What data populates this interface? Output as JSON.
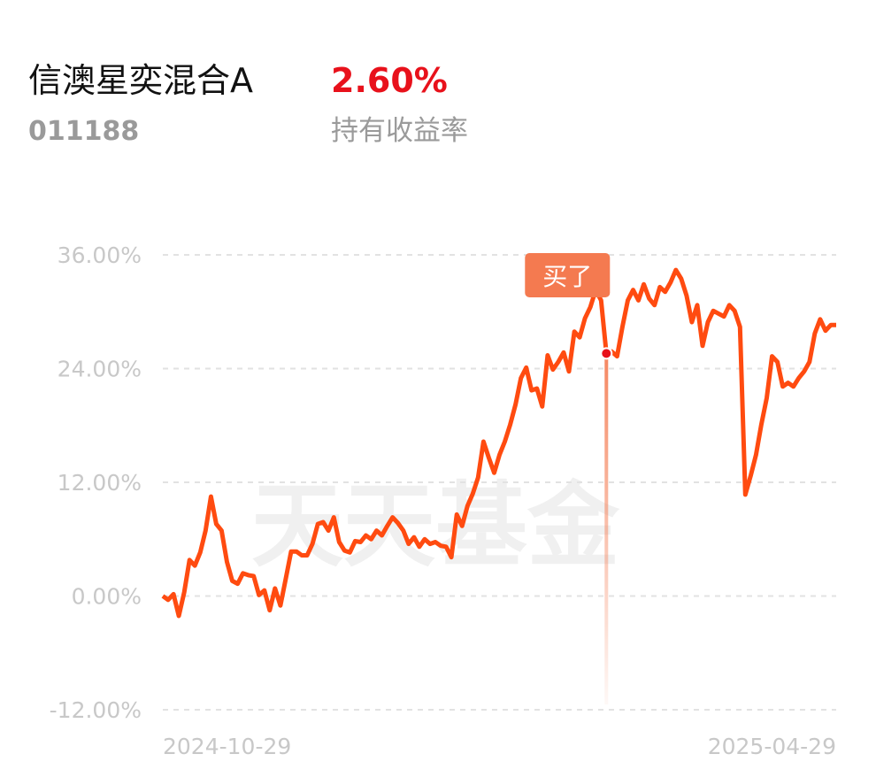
{
  "fund": {
    "name": "信澳星奕混合A",
    "return": "2.60%",
    "code": "011188",
    "return_label": "持有收益率"
  },
  "watermark": "天天基金",
  "chart_data": {
    "type": "line",
    "categories": [
      "2024-10-29",
      null,
      null,
      null,
      null,
      null,
      null,
      null,
      null,
      null,
      null,
      null,
      null,
      null,
      null,
      null,
      null,
      null,
      null,
      null,
      null,
      null,
      null,
      null,
      null,
      null,
      null,
      null,
      null,
      null,
      null,
      null,
      null,
      null,
      null,
      null,
      null,
      null,
      null,
      null,
      null,
      null,
      null,
      null,
      null,
      null,
      null,
      null,
      null,
      null,
      null,
      null,
      null,
      null,
      null,
      null,
      null,
      null,
      null,
      null,
      null,
      null,
      null,
      null,
      null,
      null,
      null,
      null,
      null,
      null,
      null,
      null,
      null,
      null,
      null,
      null,
      null,
      null,
      null,
      null,
      null,
      null,
      null,
      null,
      null,
      null,
      null,
      null,
      null,
      null,
      null,
      null,
      null,
      null,
      null,
      null,
      null,
      null,
      null,
      null,
      null,
      null,
      null,
      null,
      null,
      null,
      null,
      null,
      null,
      null,
      null,
      null,
      null,
      null,
      null,
      null,
      null,
      null,
      null,
      null,
      null,
      null,
      null,
      null,
      null,
      null,
      "2025-04-29"
    ],
    "series": [
      {
        "color": "#ff4b10",
        "values": [
          0,
          -0.4,
          0.2,
          -2.1,
          0.4,
          3.8,
          3.2,
          4.6,
          6.9,
          10.5,
          7.6,
          6.9,
          3.6,
          1.6,
          1.3,
          2.4,
          2.2,
          2.1,
          0.1,
          0.6,
          -1.5,
          0.8,
          -1.0,
          1.8,
          4.7,
          4.7,
          4.3,
          4.3,
          5.5,
          7.6,
          7.8,
          6.9,
          8.3,
          5.7,
          4.8,
          4.6,
          5.8,
          5.7,
          6.4,
          6.0,
          6.9,
          6.4,
          7.4,
          8.3,
          7.7,
          6.9,
          5.5,
          6.2,
          5.2,
          6.0,
          5.5,
          5.7,
          5.3,
          5.2,
          4.1,
          8.6,
          7.4,
          9.5,
          10.8,
          12.5,
          16.3,
          14.6,
          13.0,
          14.9,
          16.3,
          18.1,
          20.2,
          23.0,
          24.1,
          21.7,
          21.9,
          20.0,
          25.4,
          23.9,
          24.7,
          25.7,
          23.7,
          27.9,
          27.3,
          29.3,
          30.5,
          32.3,
          31.2,
          25.6,
          25.8,
          25.3,
          28.4,
          31.2,
          32.3,
          31.2,
          32.9,
          31.4,
          30.7,
          32.6,
          32.1,
          33.1,
          34.4,
          33.5,
          31.7,
          28.9,
          30.7,
          26.4,
          28.9,
          30.1,
          29.8,
          29.5,
          30.7,
          30.1,
          28.4,
          10.7,
          12.7,
          14.9,
          18.1,
          20.9,
          25.3,
          24.7,
          22.1,
          22.5,
          22.1,
          23.0,
          23.7,
          24.7,
          27.7,
          29.2,
          28.0,
          28.6,
          28.6
        ]
      }
    ],
    "buy_marker": {
      "label": "买了",
      "value": 25.6,
      "color": "#f47a50"
    },
    "ylim": [
      -12,
      36
    ],
    "yticks": [
      {
        "value": -12,
        "label": "-12.00%"
      },
      {
        "value": 0,
        "label": "0.00%"
      },
      {
        "value": 12,
        "label": "12.00%"
      },
      {
        "value": 24,
        "label": "24.00%"
      },
      {
        "value": 36,
        "label": "36.00%"
      }
    ],
    "grid": true
  }
}
